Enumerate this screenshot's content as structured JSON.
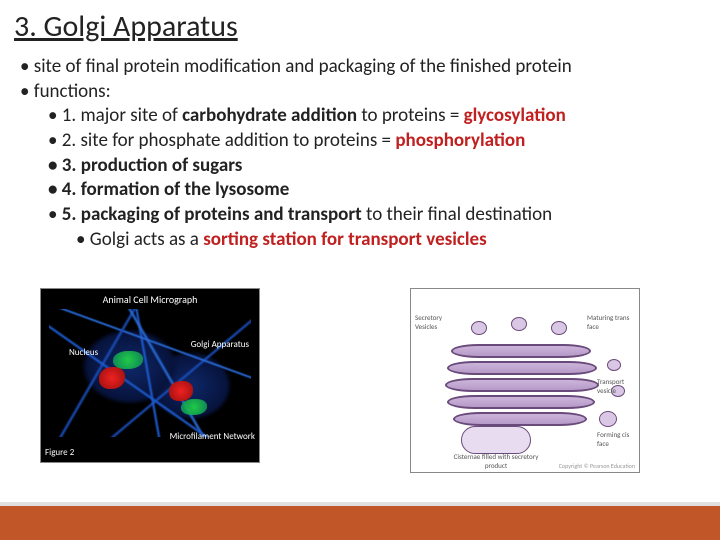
{
  "title": "3. Golgi Apparatus",
  "lines": {
    "intro": "site of final protein modification and packaging of the finished protein",
    "functions_label": "functions:",
    "f1_a": "1. major site of ",
    "f1_b": "carbohydrate addition",
    "f1_c": " to proteins = ",
    "f1_d": "glycosylation",
    "f2_a": "2. site for phosphate addition to proteins = ",
    "f2_b": "phosphorylation",
    "f3": "3. production of sugars",
    "f4": "4. formation of the lysosome",
    "f5_a": "5. packaging of proteins and transport",
    "f5_b": " to their final destination",
    "f6_a": "Golgi acts as a ",
    "f6_b": "sorting station for transport vesicles"
  },
  "micrograph": {
    "title": "Animal Cell Micrograph",
    "nucleus_label": "Nucleus",
    "golgi_label": "Golgi Apparatus",
    "figure_label": "Figure 2",
    "network_label": "Microfilament\nNetwork"
  },
  "diagram": {
    "secretory": "Secretory Vesicles",
    "maturing": "Maturing\ntrans face",
    "transport": "Transport\nvesicle",
    "forming": "Forming\ncis face",
    "cisternae": "Cisternae filled with\nsecretory product",
    "copyright": "Copyright © Pearson Education"
  },
  "colors": {
    "title_color": "#222222",
    "text_color": "#222222",
    "red": "#c02020",
    "footer": "#c15628",
    "footer_border": "#e0e0e0"
  }
}
